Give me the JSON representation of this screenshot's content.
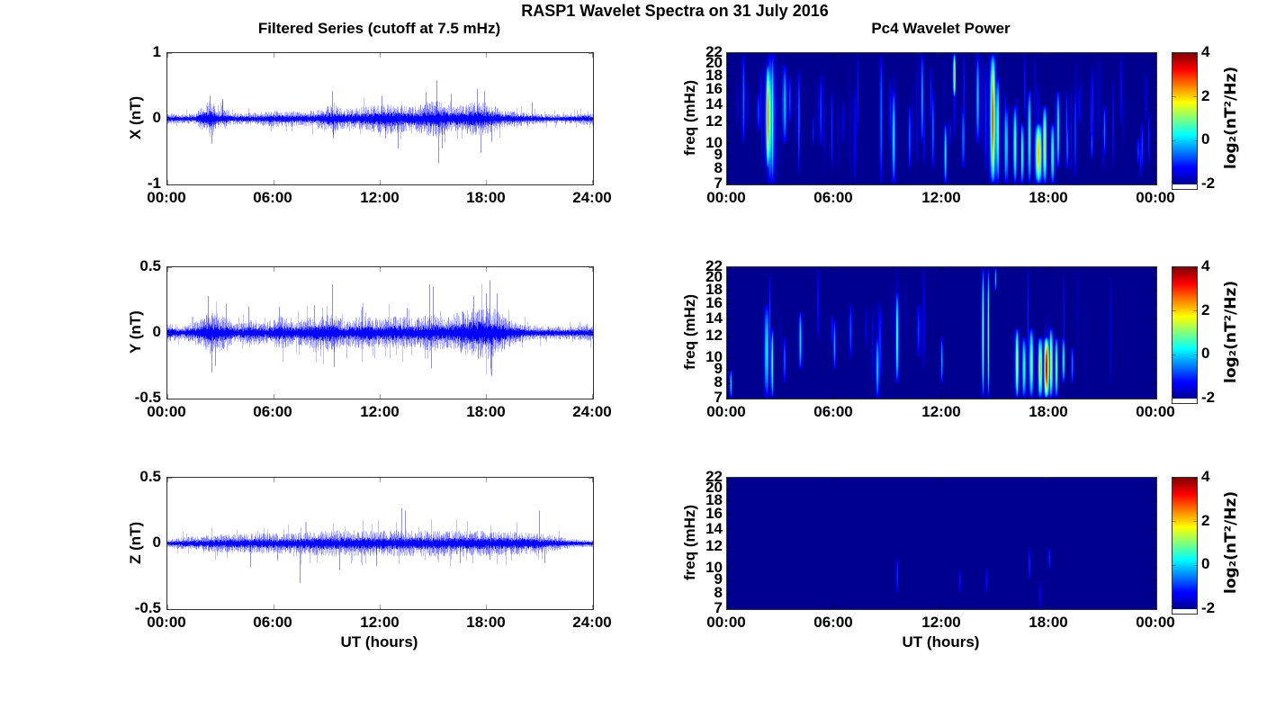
{
  "figure": {
    "title": "RASP1 Wavelet Spectra on 31 July 2016"
  },
  "colors": {
    "line": "#0000FF",
    "heat_background": "#00008F",
    "axis": "#333333"
  },
  "colorbar": {
    "label": "log₂(nT²/Hz)",
    "ticks": [
      4,
      2,
      0,
      -2
    ],
    "range": [
      -2,
      4
    ]
  },
  "chart_data": [
    {
      "type": "line",
      "id": "ts-x",
      "title": "Filtered Series (cutoff at 7.5 mHz)",
      "ylabel": "X (nT)",
      "ylim": [
        -1,
        1
      ],
      "yticks": [
        1,
        0,
        -1
      ],
      "xlim_hours": [
        0,
        24
      ],
      "x_ticks_hours": [
        0,
        6,
        12,
        18,
        24
      ],
      "x_ticklabels": [
        "00:00",
        "06:00",
        "12:00",
        "18:00",
        "24:00"
      ],
      "seed": 11,
      "envelope": [
        [
          0,
          0.1
        ],
        [
          0.7,
          0.07
        ],
        [
          1.6,
          0.09
        ],
        [
          2.1,
          0.22
        ],
        [
          2.45,
          0.3
        ],
        [
          2.9,
          0.12
        ],
        [
          3.2,
          0.17
        ],
        [
          3.6,
          0.09
        ],
        [
          5,
          0.1
        ],
        [
          6.5,
          0.13
        ],
        [
          7.5,
          0.11
        ],
        [
          8.5,
          0.14
        ],
        [
          9.3,
          0.22
        ],
        [
          10,
          0.15
        ],
        [
          11,
          0.18
        ],
        [
          12,
          0.22
        ],
        [
          12.8,
          0.25
        ],
        [
          13.6,
          0.18
        ],
        [
          14.5,
          0.25
        ],
        [
          15.2,
          0.3
        ],
        [
          16,
          0.2
        ],
        [
          16.8,
          0.22
        ],
        [
          17.6,
          0.28
        ],
        [
          18.3,
          0.22
        ],
        [
          19,
          0.13
        ],
        [
          20,
          0.11
        ],
        [
          21,
          0.08
        ],
        [
          22,
          0.07
        ],
        [
          23,
          0.08
        ],
        [
          23.7,
          0.1
        ],
        [
          24,
          0.08
        ]
      ],
      "spikes": [
        [
          2.4,
          0.35
        ],
        [
          2.5,
          -0.38
        ],
        [
          3.1,
          0.3
        ],
        [
          9.3,
          0.42
        ],
        [
          9.35,
          -0.3
        ],
        [
          12.1,
          0.35
        ],
        [
          12.3,
          -0.3
        ],
        [
          13.0,
          -0.45
        ],
        [
          14.6,
          0.4
        ],
        [
          15.2,
          0.58
        ],
        [
          15.3,
          -0.68
        ],
        [
          15.5,
          -0.45
        ],
        [
          16.0,
          0.38
        ],
        [
          17.5,
          0.45
        ],
        [
          17.7,
          -0.52
        ],
        [
          17.9,
          0.42
        ],
        [
          18.3,
          -0.35
        ],
        [
          20.6,
          0.25
        ]
      ]
    },
    {
      "type": "line",
      "id": "ts-y",
      "ylabel": "Y (nT)",
      "ylim": [
        -0.5,
        0.5
      ],
      "yticks": [
        0.5,
        0,
        -0.5
      ],
      "xlim_hours": [
        0,
        24
      ],
      "x_ticks_hours": [
        0,
        6,
        12,
        18,
        24
      ],
      "x_ticklabels": [
        "00:00",
        "06:00",
        "12:00",
        "18:00",
        "24:00"
      ],
      "seed": 22,
      "envelope": [
        [
          0,
          0.09
        ],
        [
          0.8,
          0.05
        ],
        [
          1.8,
          0.1
        ],
        [
          2.3,
          0.17
        ],
        [
          2.8,
          0.15
        ],
        [
          3.3,
          0.12
        ],
        [
          4,
          0.07
        ],
        [
          4.7,
          0.11
        ],
        [
          5.5,
          0.08
        ],
        [
          6.4,
          0.13
        ],
        [
          7.2,
          0.09
        ],
        [
          8.3,
          0.13
        ],
        [
          9.3,
          0.15
        ],
        [
          10,
          0.1
        ],
        [
          11,
          0.13
        ],
        [
          12,
          0.11
        ],
        [
          13,
          0.13
        ],
        [
          14,
          0.11
        ],
        [
          14.9,
          0.15
        ],
        [
          15.7,
          0.12
        ],
        [
          16.5,
          0.16
        ],
        [
          17.3,
          0.19
        ],
        [
          18.2,
          0.22
        ],
        [
          18.8,
          0.15
        ],
        [
          19.5,
          0.1
        ],
        [
          20.3,
          0.06
        ],
        [
          21.5,
          0.05
        ],
        [
          22.5,
          0.05
        ],
        [
          23.3,
          0.06
        ],
        [
          24,
          0.06
        ]
      ],
      "spikes": [
        [
          2.3,
          0.28
        ],
        [
          2.5,
          -0.3
        ],
        [
          2.7,
          -0.25
        ],
        [
          3.3,
          0.22
        ],
        [
          4.6,
          0.2
        ],
        [
          6.3,
          0.2
        ],
        [
          8.3,
          0.21
        ],
        [
          9.3,
          0.37
        ],
        [
          9.4,
          -0.26
        ],
        [
          11.0,
          0.2
        ],
        [
          13.5,
          0.19
        ],
        [
          14.8,
          0.37
        ],
        [
          15.0,
          0.35
        ],
        [
          14.9,
          -0.27
        ],
        [
          17.3,
          0.28
        ],
        [
          18.0,
          0.3
        ],
        [
          18.2,
          0.4
        ],
        [
          18.3,
          -0.33
        ],
        [
          18.6,
          0.3
        ]
      ]
    },
    {
      "type": "line",
      "id": "ts-z",
      "ylabel": "Z (nT)",
      "ylim": [
        -0.5,
        0.5
      ],
      "yticks": [
        0.5,
        0,
        -0.5
      ],
      "xlabel": "UT (hours)",
      "xlim_hours": [
        0,
        24
      ],
      "x_ticks_hours": [
        0,
        6,
        12,
        18,
        24
      ],
      "x_ticklabels": [
        "00:00",
        "06:00",
        "12:00",
        "18:00",
        "24:00"
      ],
      "seed": 33,
      "envelope": [
        [
          0,
          0.03
        ],
        [
          1,
          0.05
        ],
        [
          2,
          0.06
        ],
        [
          3,
          0.07
        ],
        [
          4,
          0.07
        ],
        [
          5,
          0.08
        ],
        [
          6,
          0.08
        ],
        [
          7,
          0.08
        ],
        [
          8,
          0.09
        ],
        [
          9,
          0.1
        ],
        [
          10,
          0.1
        ],
        [
          11,
          0.1
        ],
        [
          12,
          0.1
        ],
        [
          13,
          0.1
        ],
        [
          14,
          0.1
        ],
        [
          15,
          0.1
        ],
        [
          16,
          0.1
        ],
        [
          17,
          0.1
        ],
        [
          18,
          0.1
        ],
        [
          19,
          0.09
        ],
        [
          20,
          0.09
        ],
        [
          21,
          0.08
        ],
        [
          21.8,
          0.06
        ],
        [
          22.5,
          0.04
        ],
        [
          23.5,
          0.03
        ],
        [
          24,
          0.03
        ]
      ],
      "spikes": [
        [
          4.7,
          -0.18
        ],
        [
          7.5,
          -0.3
        ],
        [
          9.7,
          -0.2
        ],
        [
          11.8,
          -0.17
        ],
        [
          13.2,
          0.27
        ],
        [
          13.4,
          0.25
        ],
        [
          16.5,
          -0.15
        ],
        [
          21.0,
          0.25
        ],
        [
          21.3,
          -0.15
        ]
      ]
    },
    {
      "type": "heatmap",
      "id": "wav-x",
      "title": "Pc4 Wavelet Power",
      "ylabel": "freq (mHz)",
      "flim": [
        7,
        22
      ],
      "yticks": [
        22,
        20,
        18,
        16,
        14,
        12,
        10,
        9,
        8,
        7
      ],
      "xlim_hours": [
        0,
        24
      ],
      "x_ticks_hours": [
        0,
        6,
        12,
        18,
        24
      ],
      "x_ticklabels": [
        "00:00",
        "06:00",
        "12:00",
        "18:00",
        "00:00"
      ],
      "background_value": -2,
      "value_range": [
        -2,
        4
      ],
      "seed": 44,
      "texture_count": 70,
      "events": [
        {
          "t": 0.9,
          "f1": 10,
          "f2": 22,
          "peak": -0.8,
          "w": 0.06
        },
        {
          "t": 2.3,
          "f1": 8,
          "f2": 20,
          "peak": 2.2,
          "w": 0.1
        },
        {
          "t": 2.45,
          "f1": 7,
          "f2": 22,
          "peak": 0.5,
          "w": 0.15
        },
        {
          "t": 3.2,
          "f1": 10,
          "f2": 20,
          "peak": 0.0,
          "w": 0.08
        },
        {
          "t": 3.5,
          "f1": 12,
          "f2": 18,
          "peak": -0.8,
          "w": 0.05
        },
        {
          "t": 8.6,
          "f1": 7,
          "f2": 22,
          "peak": -0.5,
          "w": 0.05
        },
        {
          "t": 9.3,
          "f1": 7,
          "f2": 16,
          "peak": 0.3,
          "w": 0.07
        },
        {
          "t": 10.2,
          "f1": 8,
          "f2": 14,
          "peak": -0.5,
          "w": 0.05
        },
        {
          "t": 10.9,
          "f1": 10,
          "f2": 22,
          "peak": -0.3,
          "w": 0.05
        },
        {
          "t": 11.5,
          "f1": 8,
          "f2": 16,
          "peak": -0.5,
          "w": 0.05
        },
        {
          "t": 12.2,
          "f1": 7,
          "f2": 12,
          "peak": 0.0,
          "w": 0.06
        },
        {
          "t": 12.7,
          "f1": 15,
          "f2": 22,
          "peak": 1.8,
          "w": 0.05
        },
        {
          "t": 13.2,
          "f1": 8,
          "f2": 14,
          "peak": -0.3,
          "w": 0.05
        },
        {
          "t": 14.0,
          "f1": 10,
          "f2": 22,
          "peak": 0.0,
          "w": 0.06
        },
        {
          "t": 14.85,
          "f1": 7,
          "f2": 22,
          "peak": 2.3,
          "w": 0.1
        },
        {
          "t": 15.1,
          "f1": 7,
          "f2": 18,
          "peak": 1.0,
          "w": 0.08
        },
        {
          "t": 15.6,
          "f1": 7,
          "f2": 14,
          "peak": 0.5,
          "w": 0.07
        },
        {
          "t": 16.1,
          "f1": 7,
          "f2": 14,
          "peak": 0.8,
          "w": 0.07
        },
        {
          "t": 16.5,
          "f1": 7,
          "f2": 12,
          "peak": 0.6,
          "w": 0.06
        },
        {
          "t": 16.9,
          "f1": 7,
          "f2": 16,
          "peak": 0.9,
          "w": 0.06
        },
        {
          "t": 17.4,
          "f1": 7,
          "f2": 12,
          "peak": 2.4,
          "w": 0.12
        },
        {
          "t": 17.75,
          "f1": 7,
          "f2": 14,
          "peak": 1.2,
          "w": 0.07
        },
        {
          "t": 18.2,
          "f1": 7,
          "f2": 12,
          "peak": 0.8,
          "w": 0.07
        },
        {
          "t": 18.5,
          "f1": 8,
          "f2": 16,
          "peak": 0.2,
          "w": 0.06
        },
        {
          "t": 19.0,
          "f1": 8,
          "f2": 12,
          "peak": -0.5,
          "w": 0.05
        },
        {
          "t": 21.1,
          "f1": 9,
          "f2": 14,
          "peak": -0.6,
          "w": 0.05
        },
        {
          "t": 23.2,
          "f1": 8,
          "f2": 12,
          "peak": -0.8,
          "w": 0.05
        }
      ]
    },
    {
      "type": "heatmap",
      "id": "wav-y",
      "ylabel": "freq (mHz)",
      "flim": [
        7,
        22
      ],
      "yticks": [
        22,
        20,
        18,
        16,
        14,
        12,
        10,
        9,
        8,
        7
      ],
      "xlim_hours": [
        0,
        24
      ],
      "x_ticks_hours": [
        0,
        6,
        12,
        18,
        24
      ],
      "x_ticklabels": [
        "00:00",
        "06:00",
        "12:00",
        "18:00",
        "00:00"
      ],
      "background_value": -2,
      "value_range": [
        -2,
        4
      ],
      "seed": 55,
      "texture_count": 25,
      "events": [
        {
          "t": 0.2,
          "f1": 7,
          "f2": 9,
          "peak": 0.0,
          "w": 0.05
        },
        {
          "t": 2.2,
          "f1": 7,
          "f2": 16,
          "peak": 0.3,
          "w": 0.08
        },
        {
          "t": 2.5,
          "f1": 7,
          "f2": 13,
          "peak": 0.6,
          "w": 0.06
        },
        {
          "t": 3.2,
          "f1": 8,
          "f2": 12,
          "peak": -0.5,
          "w": 0.05
        },
        {
          "t": 4.1,
          "f1": 9,
          "f2": 15,
          "peak": 0.2,
          "w": 0.06
        },
        {
          "t": 6.0,
          "f1": 9,
          "f2": 14,
          "peak": -0.3,
          "w": 0.05
        },
        {
          "t": 6.9,
          "f1": 10,
          "f2": 16,
          "peak": -0.6,
          "w": 0.05
        },
        {
          "t": 8.4,
          "f1": 7,
          "f2": 12,
          "peak": 0.4,
          "w": 0.06
        },
        {
          "t": 9.5,
          "f1": 8,
          "f2": 18,
          "peak": 0.6,
          "w": 0.06
        },
        {
          "t": 10.7,
          "f1": 10,
          "f2": 16,
          "peak": -0.5,
          "w": 0.05
        },
        {
          "t": 12.0,
          "f1": 8,
          "f2": 12,
          "peak": -0.4,
          "w": 0.05
        },
        {
          "t": 14.3,
          "f1": 7,
          "f2": 22,
          "peak": 0.8,
          "w": 0.05
        },
        {
          "t": 14.6,
          "f1": 7,
          "f2": 22,
          "peak": 0.6,
          "w": 0.04
        },
        {
          "t": 15.0,
          "f1": 18,
          "f2": 22,
          "peak": 0.0,
          "w": 0.04
        },
        {
          "t": 16.2,
          "f1": 7,
          "f2": 13,
          "peak": 0.8,
          "w": 0.08
        },
        {
          "t": 16.6,
          "f1": 7,
          "f2": 12,
          "peak": 1.0,
          "w": 0.07
        },
        {
          "t": 17.0,
          "f1": 7,
          "f2": 13,
          "peak": 1.2,
          "w": 0.08
        },
        {
          "t": 17.5,
          "f1": 7,
          "f2": 12,
          "peak": 1.6,
          "w": 0.08
        },
        {
          "t": 17.85,
          "f1": 7,
          "f2": 12,
          "peak": 2.8,
          "w": 0.1
        },
        {
          "t": 18.1,
          "f1": 7,
          "f2": 13,
          "peak": 1.5,
          "w": 0.07
        },
        {
          "t": 18.4,
          "f1": 7,
          "f2": 12,
          "peak": 0.8,
          "w": 0.06
        },
        {
          "t": 18.8,
          "f1": 8,
          "f2": 12,
          "peak": 0.3,
          "w": 0.05
        },
        {
          "t": 19.3,
          "f1": 8,
          "f2": 11,
          "peak": -0.4,
          "w": 0.05
        }
      ]
    },
    {
      "type": "heatmap",
      "id": "wav-z",
      "ylabel": "freq (mHz)",
      "flim": [
        7,
        22
      ],
      "yticks": [
        22,
        20,
        18,
        16,
        14,
        12,
        10,
        9,
        8,
        7
      ],
      "xlabel": "UT (hours)",
      "xlim_hours": [
        0,
        24
      ],
      "x_ticks_hours": [
        0,
        6,
        12,
        18,
        24
      ],
      "x_ticklabels": [
        "00:00",
        "06:00",
        "12:00",
        "18:00",
        "00:00"
      ],
      "background_value": -2,
      "value_range": [
        -2,
        4
      ],
      "seed": 66,
      "texture_count": 0,
      "events": [
        {
          "t": 9.5,
          "f1": 8,
          "f2": 11,
          "peak": -1.0,
          "w": 0.04
        },
        {
          "t": 13.0,
          "f1": 8,
          "f2": 10,
          "peak": -1.2,
          "w": 0.04
        },
        {
          "t": 14.5,
          "f1": 8,
          "f2": 10,
          "peak": -1.2,
          "w": 0.04
        },
        {
          "t": 16.9,
          "f1": 9,
          "f2": 12,
          "peak": -1.0,
          "w": 0.04
        },
        {
          "t": 17.5,
          "f1": 7,
          "f2": 9,
          "peak": -1.3,
          "w": 0.04
        },
        {
          "t": 18.0,
          "f1": 10,
          "f2": 12,
          "peak": -1.0,
          "w": 0.04
        }
      ]
    }
  ]
}
